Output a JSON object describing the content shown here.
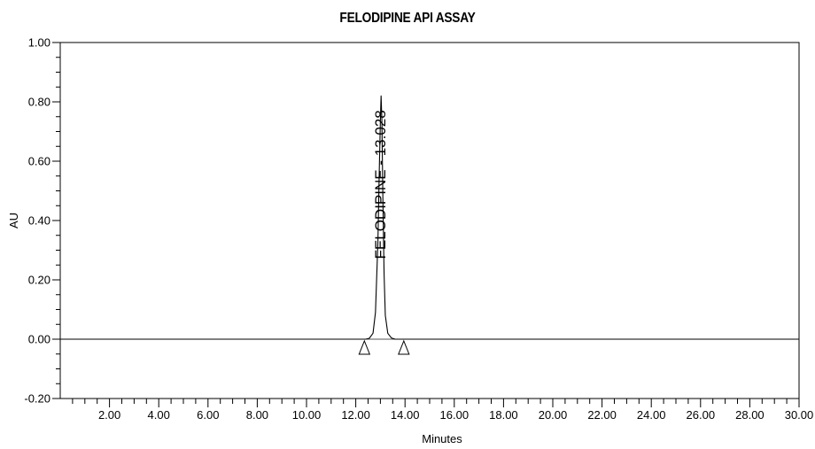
{
  "chart_data": {
    "type": "line",
    "title": "FELODIPINE API ASSAY",
    "xlabel": "Minutes",
    "ylabel": "AU",
    "xlim": [
      0,
      30
    ],
    "ylim": [
      -0.2,
      1.0
    ],
    "x_ticks": [
      "2.00",
      "4.00",
      "6.00",
      "8.00",
      "10.00",
      "12.00",
      "14.00",
      "16.00",
      "18.00",
      "20.00",
      "22.00",
      "24.00",
      "26.00",
      "28.00",
      "30.00"
    ],
    "y_ticks": [
      "-0.20",
      "0.00",
      "0.20",
      "0.40",
      "0.60",
      "0.80",
      "1.00"
    ],
    "grid": false,
    "series": [
      {
        "color": "#000000",
        "x": [
          0,
          12.4,
          12.55,
          12.7,
          12.8,
          12.9,
          12.95,
          13.0,
          13.028,
          13.06,
          13.1,
          13.15,
          13.2,
          13.3,
          13.45,
          13.6,
          13.95,
          30
        ],
        "y": [
          0,
          0,
          0.003,
          0.02,
          0.09,
          0.33,
          0.55,
          0.74,
          0.82,
          0.74,
          0.48,
          0.22,
          0.08,
          0.02,
          0.004,
          0,
          0,
          0
        ]
      }
    ],
    "annotations": [
      {
        "text": "FELODIPINE - 13.028",
        "x": 13.028,
        "y": 0.82,
        "orientation": "vertical"
      }
    ],
    "integration_markers": [
      {
        "x": 12.35,
        "y": 0
      },
      {
        "x": 13.95,
        "y": 0
      }
    ]
  }
}
